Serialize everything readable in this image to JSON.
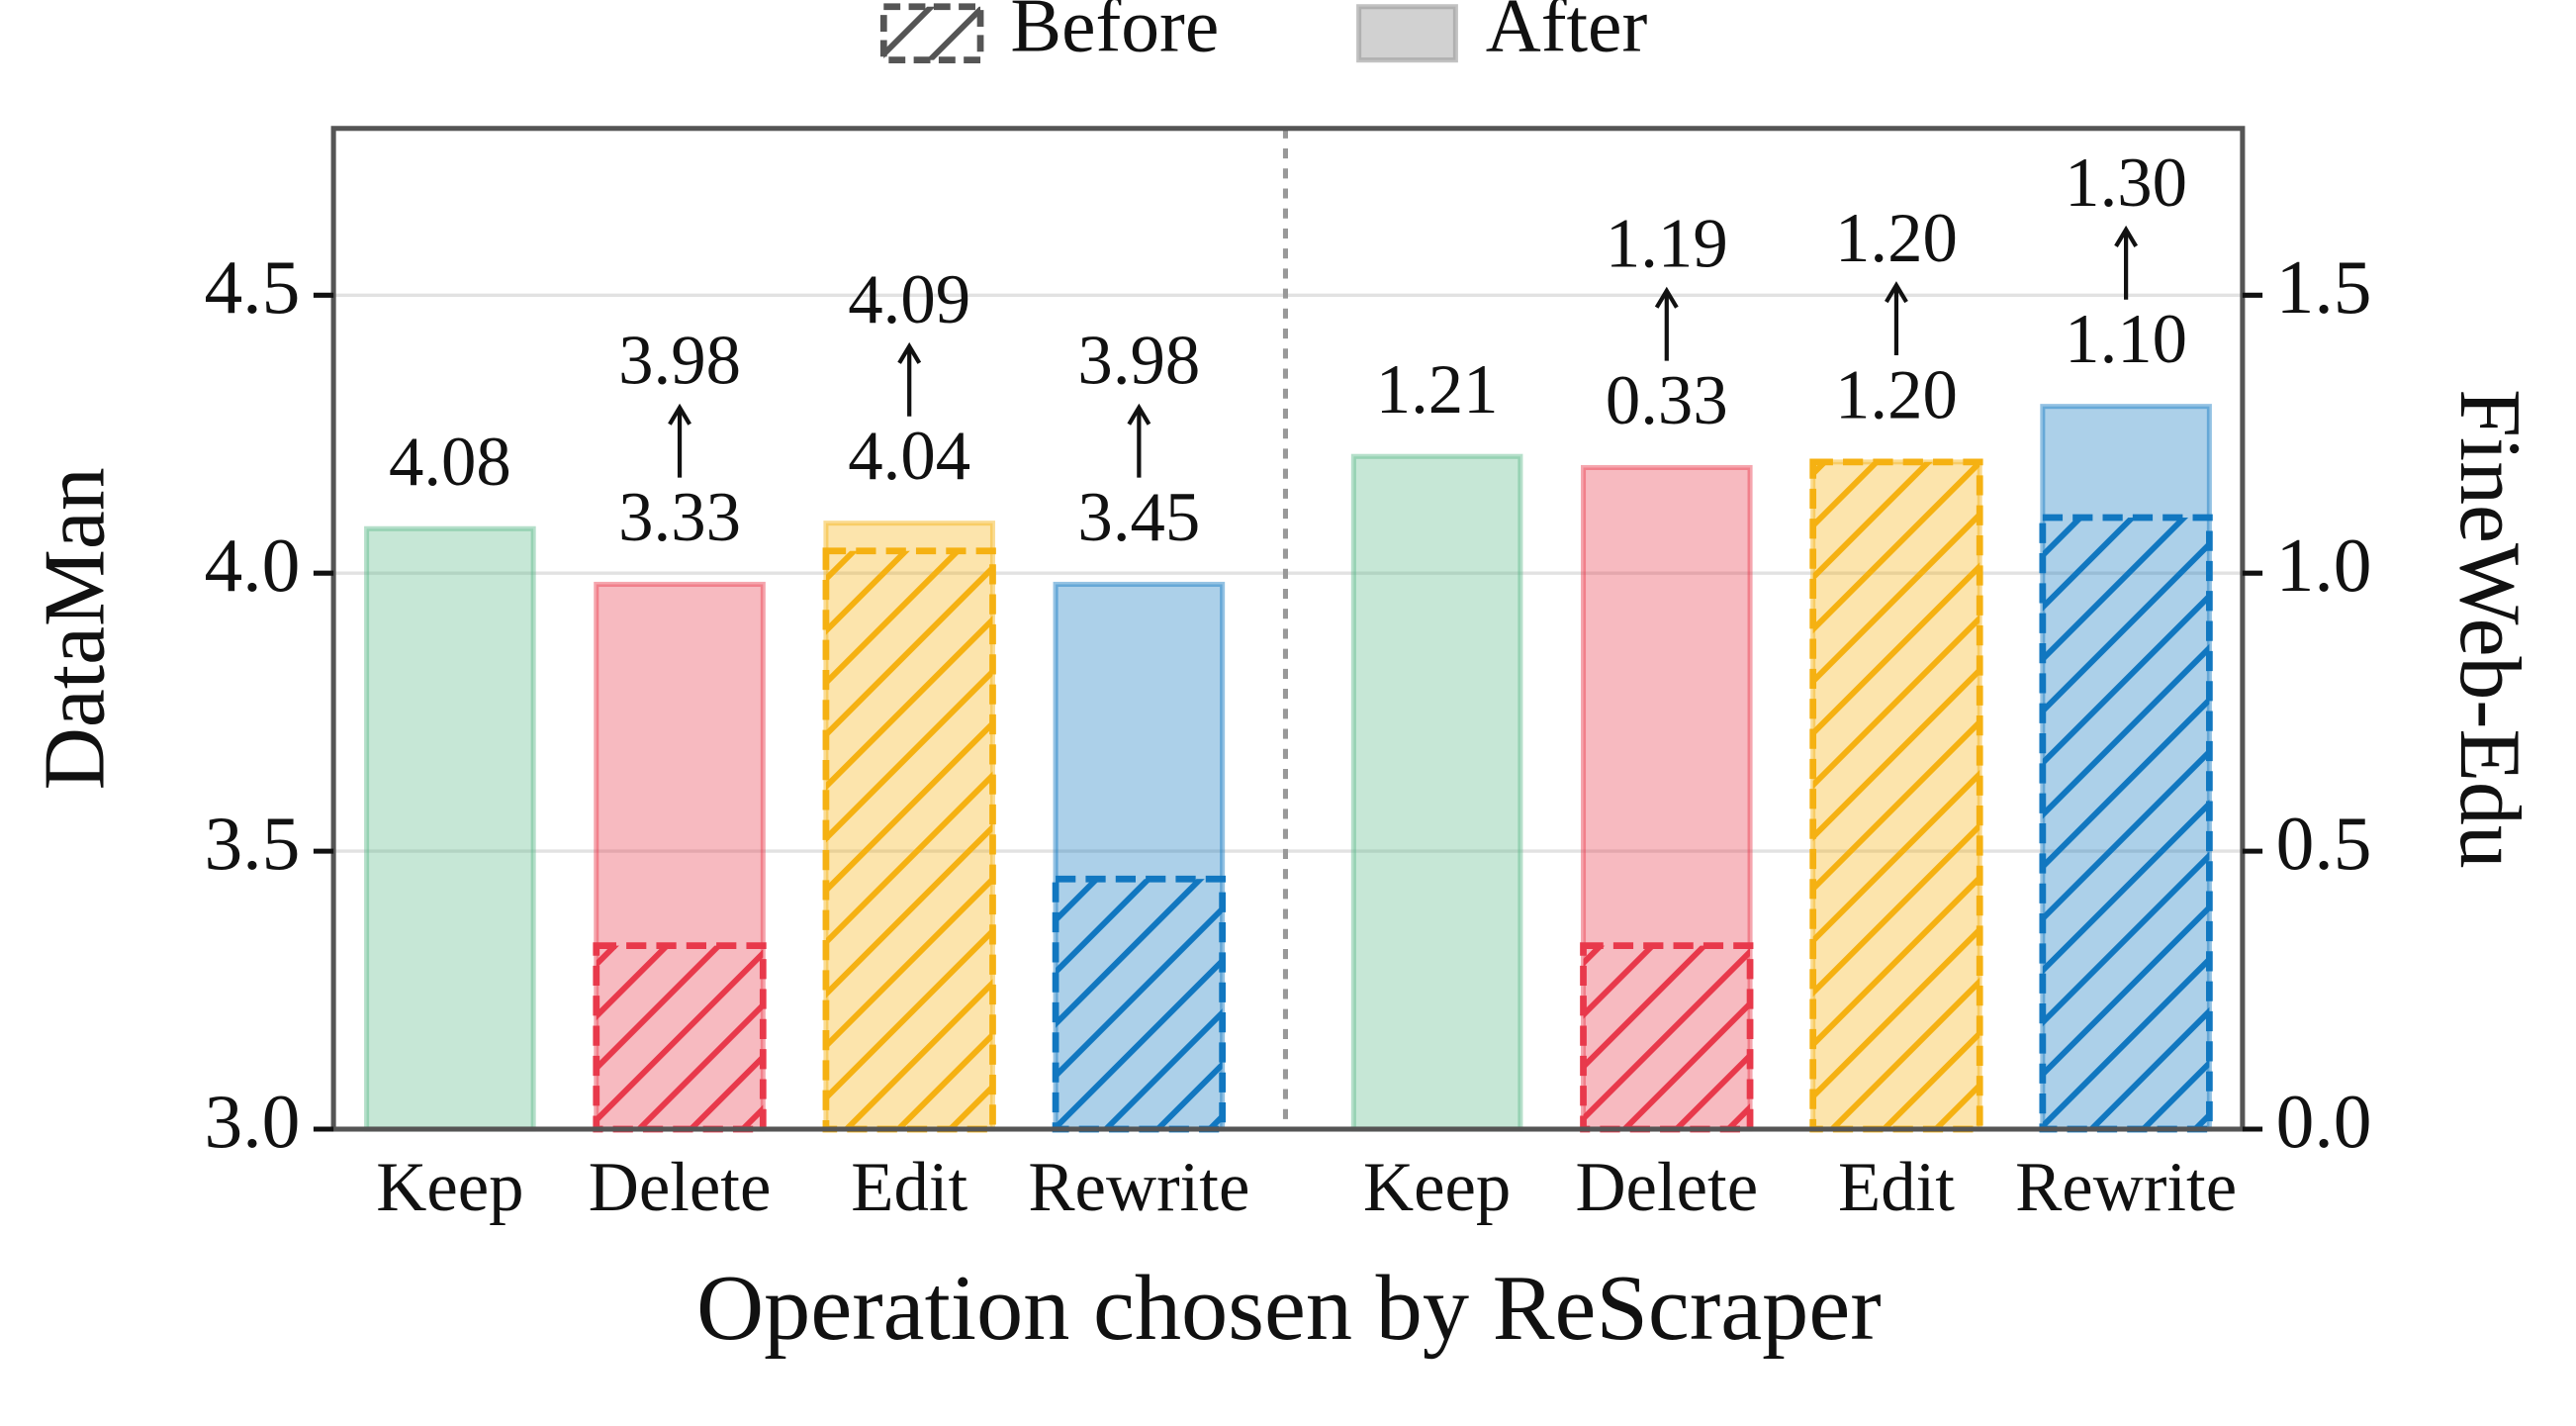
{
  "chart_data": [
    {
      "type": "bar",
      "ylabel": "DataMan",
      "xlabel": "Operation chosen by ReScraper",
      "categories": [
        "Keep",
        "Delete",
        "Edit",
        "Rewrite"
      ],
      "colors": [
        "#5cb98a",
        "#e8394b",
        "#f5b112",
        "#1177c0"
      ],
      "ylim": [
        3.0,
        4.8
      ],
      "yticks": [
        {
          "value": 3,
          "label": "3.0"
        },
        3.5,
        {
          "value": 4,
          "label": "4.0"
        },
        4.5
      ],
      "grid": true,
      "legend": "top",
      "series": [
        {
          "name": "Before",
          "color": "#555555",
          "values": [
            null,
            3.33,
            4.04,
            3.45
          ],
          "value_labels": [
            null,
            "3.33",
            "4.04",
            "3.45"
          ]
        },
        {
          "name": "After",
          "color": "#9a9a9a",
          "values": [
            4.08,
            3.98,
            4.09,
            3.98
          ],
          "value_labels": [
            "4.08",
            "3.98",
            "4.09",
            "3.98"
          ]
        }
      ]
    },
    {
      "type": "bar",
      "ylabel": "FineWeb-Edu",
      "y_axis_position": "right",
      "categories": [
        "Keep",
        "Delete",
        "Edit",
        "Rewrite"
      ],
      "colors": [
        "#5cb98a",
        "#e8394b",
        "#f5b112",
        "#1177c0"
      ],
      "ylim": [
        0,
        1.8
      ],
      "yticks": [
        {
          "value": 0,
          "label": "0.0"
        },
        0.5,
        {
          "value": 1,
          "label": "1.0"
        },
        1.5
      ],
      "grid": false,
      "series": [
        {
          "name": "Before",
          "color": "#555555",
          "values": [
            null,
            0.33,
            1.2,
            1.1
          ],
          "value_labels": [
            null,
            "0.33",
            "1.20",
            "1.10"
          ]
        },
        {
          "name": "After",
          "color": "#9a9a9a",
          "values": [
            1.21,
            1.19,
            1.2,
            1.3
          ],
          "value_labels": [
            "1.21",
            "1.19",
            "1.20",
            "1.30"
          ]
        }
      ]
    }
  ]
}
